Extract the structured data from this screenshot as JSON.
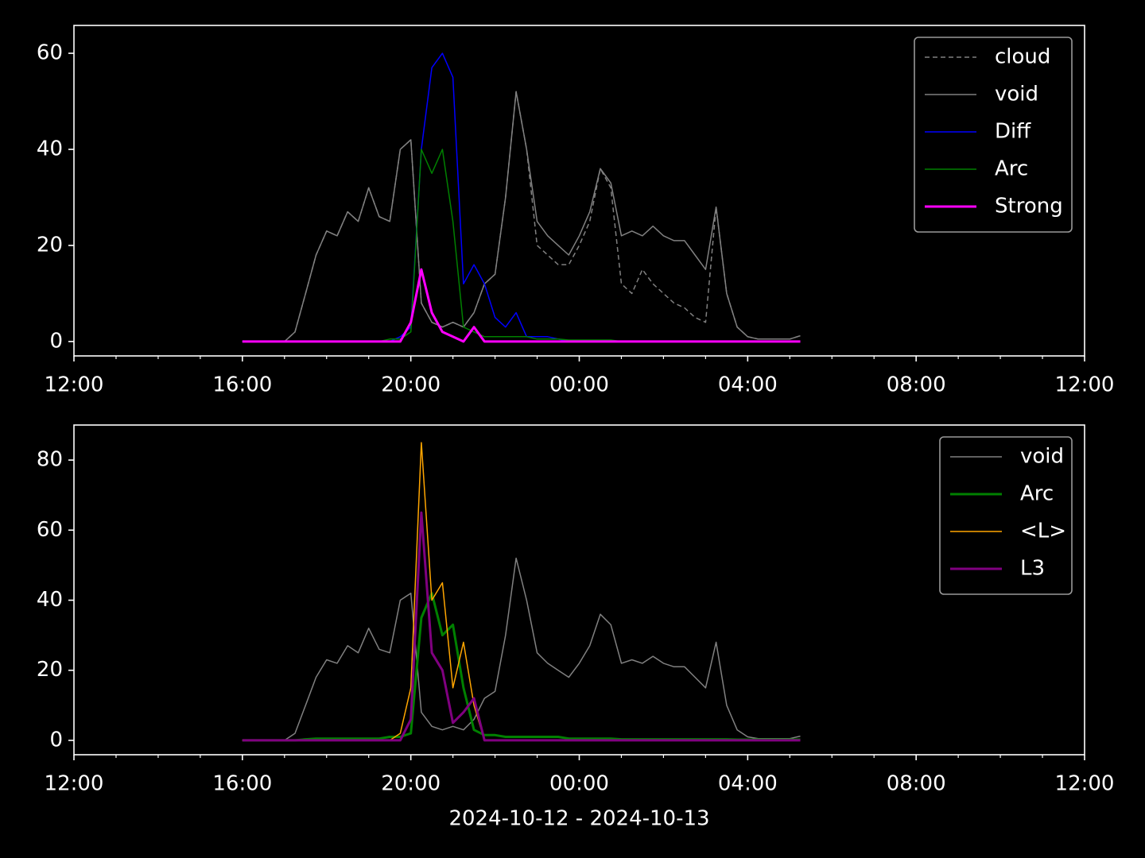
{
  "chart_data": [
    {
      "type": "line",
      "x": [
        16.0,
        16.25,
        16.5,
        16.75,
        17.0,
        17.25,
        17.5,
        17.75,
        18.0,
        18.25,
        18.5,
        18.75,
        19.0,
        19.25,
        19.5,
        19.75,
        20.0,
        20.25,
        20.5,
        20.75,
        21.0,
        21.25,
        21.5,
        21.75,
        22.0,
        22.25,
        22.5,
        22.75,
        23.0,
        23.25,
        23.5,
        23.75,
        24.0,
        24.25,
        24.5,
        24.75,
        25.0,
        25.25,
        25.5,
        25.75,
        26.0,
        26.25,
        26.5,
        26.75,
        27.0,
        27.25,
        27.5,
        27.75,
        28.0,
        28.25,
        28.5,
        28.75,
        29.0,
        29.25
      ],
      "xlim": [
        12,
        36
      ],
      "xticks": [
        {
          "value": 12,
          "label": "12:00"
        },
        {
          "value": 16,
          "label": "16:00"
        },
        {
          "value": 20,
          "label": "20:00"
        },
        {
          "value": 24,
          "label": "00:00"
        },
        {
          "value": 28,
          "label": "04:00"
        },
        {
          "value": 32,
          "label": "08:00"
        },
        {
          "value": 36,
          "label": "12:00"
        }
      ],
      "xminorticks": [
        13,
        14,
        15,
        17,
        18,
        19,
        21,
        22,
        23,
        25,
        26,
        27,
        29,
        30,
        31,
        33,
        34,
        35
      ],
      "ylim": [
        -3.0,
        65.8
      ],
      "yticks": [
        0,
        20,
        40,
        60
      ],
      "legend": "upper right",
      "series": [
        {
          "name": "cloud",
          "color": "#808080",
          "linewidth": 1.5,
          "linestyle": "dashed",
          "values": [
            0,
            0,
            0,
            0,
            0,
            2,
            10,
            18,
            23,
            22,
            27,
            25,
            32,
            26,
            25,
            40,
            42,
            8,
            4,
            3,
            4,
            3,
            6,
            12,
            14,
            30,
            52,
            40,
            20,
            18,
            16,
            16,
            20,
            25,
            36,
            32,
            12,
            10,
            15,
            12,
            10,
            8,
            7,
            5,
            4,
            28,
            10,
            3,
            1,
            0.5,
            0.5,
            0.5,
            0.5,
            1.2
          ]
        },
        {
          "name": "void",
          "color": "#808080",
          "linewidth": 1.5,
          "linestyle": "solid",
          "values": [
            0,
            0,
            0,
            0,
            0,
            2,
            10,
            18,
            23,
            22,
            27,
            25,
            32,
            26,
            25,
            40,
            42,
            8,
            4,
            3,
            4,
            3,
            6,
            12,
            14,
            30,
            52,
            40,
            25,
            22,
            20,
            18,
            22,
            27,
            36,
            33,
            22,
            23,
            22,
            24,
            22,
            21,
            21,
            18,
            15,
            28,
            10,
            3,
            1,
            0.5,
            0.5,
            0.5,
            0.5,
            1.2
          ]
        },
        {
          "name": "Diff",
          "color": "#0000ff",
          "linewidth": 1.5,
          "linestyle": "solid",
          "values": [
            0,
            0,
            0,
            0,
            0,
            0,
            0,
            0,
            0,
            0,
            0,
            0,
            0,
            0,
            0,
            1,
            3,
            40,
            57,
            60,
            55,
            12,
            16,
            12,
            5,
            3,
            6,
            1,
            1,
            1,
            0.5,
            0,
            0,
            0,
            0,
            0,
            0,
            0,
            0,
            0,
            0,
            0,
            0,
            0,
            0,
            0,
            0,
            0,
            0,
            0,
            0,
            0,
            0,
            0
          ]
        },
        {
          "name": "Arc",
          "color": "#008000",
          "linewidth": 1.5,
          "linestyle": "solid",
          "values": [
            0,
            0,
            0,
            0,
            0,
            0,
            0,
            0,
            0,
            0,
            0,
            0,
            0,
            0,
            0.5,
            0.5,
            2,
            40,
            35,
            40,
            25,
            3,
            2,
            1,
            1,
            1,
            1,
            1,
            0.5,
            0.5,
            0.5,
            0.3,
            0.3,
            0.3,
            0.3,
            0.3,
            0,
            0,
            0,
            0,
            0,
            0,
            0,
            0,
            0,
            0,
            0,
            0,
            0,
            0,
            0,
            0,
            0,
            0
          ]
        },
        {
          "name": "Strong",
          "color": "#ff00ff",
          "linewidth": 3,
          "linestyle": "solid",
          "values": [
            0,
            0,
            0,
            0,
            0,
            0,
            0,
            0,
            0,
            0,
            0,
            0,
            0,
            0,
            0,
            0,
            4,
            15,
            6,
            2,
            1,
            0,
            3,
            0,
            0,
            0,
            0,
            0,
            0,
            0,
            0,
            0,
            0,
            0,
            0,
            0,
            0,
            0,
            0,
            0,
            0,
            0,
            0,
            0,
            0,
            0,
            0,
            0,
            0,
            0,
            0,
            0,
            0,
            0
          ]
        }
      ]
    },
    {
      "type": "line",
      "x": [
        16.0,
        16.25,
        16.5,
        16.75,
        17.0,
        17.25,
        17.5,
        17.75,
        18.0,
        18.25,
        18.5,
        18.75,
        19.0,
        19.25,
        19.5,
        19.75,
        20.0,
        20.25,
        20.5,
        20.75,
        21.0,
        21.25,
        21.5,
        21.75,
        22.0,
        22.25,
        22.5,
        22.75,
        23.0,
        23.25,
        23.5,
        23.75,
        24.0,
        24.25,
        24.5,
        24.75,
        25.0,
        25.25,
        25.5,
        25.75,
        26.0,
        26.25,
        26.5,
        26.75,
        27.0,
        27.25,
        27.5,
        27.75,
        28.0,
        28.25,
        28.5,
        28.75,
        29.0,
        29.25
      ],
      "xlim": [
        12,
        36
      ],
      "xticks": [
        {
          "value": 12,
          "label": "12:00"
        },
        {
          "value": 16,
          "label": "16:00"
        },
        {
          "value": 20,
          "label": "20:00"
        },
        {
          "value": 24,
          "label": "00:00"
        },
        {
          "value": 28,
          "label": "04:00"
        },
        {
          "value": 32,
          "label": "08:00"
        },
        {
          "value": 36,
          "label": "12:00"
        }
      ],
      "xminorticks": [
        13,
        14,
        15,
        17,
        18,
        19,
        21,
        22,
        23,
        25,
        26,
        27,
        29,
        30,
        31,
        33,
        34,
        35
      ],
      "xlabel": "2024-10-12 - 2024-10-13",
      "ylim": [
        -4.1,
        90
      ],
      "yticks": [
        0,
        20,
        40,
        60,
        80
      ],
      "legend": "upper right",
      "series": [
        {
          "name": "void",
          "color": "#808080",
          "linewidth": 1.5,
          "linestyle": "solid",
          "values": [
            0,
            0,
            0,
            0,
            0,
            2,
            10,
            18,
            23,
            22,
            27,
            25,
            32,
            26,
            25,
            40,
            42,
            8,
            4,
            3,
            4,
            3,
            6,
            12,
            14,
            30,
            52,
            40,
            25,
            22,
            20,
            18,
            22,
            27,
            36,
            33,
            22,
            23,
            22,
            24,
            22,
            21,
            21,
            18,
            15,
            28,
            10,
            3,
            1,
            0.5,
            0.5,
            0.5,
            0.5,
            1.2
          ]
        },
        {
          "name": "Arc",
          "color": "#008000",
          "linewidth": 3,
          "linestyle": "solid",
          "values": [
            0,
            0,
            0,
            0,
            0,
            0,
            0.3,
            0.5,
            0.5,
            0.5,
            0.5,
            0.5,
            0.5,
            0.5,
            1,
            1,
            2,
            35,
            42,
            30,
            33,
            15,
            3,
            1.5,
            1.5,
            1,
            1,
            1,
            1,
            1,
            1,
            0.5,
            0.5,
            0.5,
            0.5,
            0.5,
            0.3,
            0.3,
            0.3,
            0.3,
            0.3,
            0.3,
            0.3,
            0.3,
            0.3,
            0.3,
            0.3,
            0.2,
            0.2,
            0.2,
            0.2,
            0.2,
            0.2,
            0.2
          ]
        },
        {
          "name": "<L>",
          "color": "#ffa500",
          "linewidth": 1.5,
          "linestyle": "solid",
          "values": [
            0,
            0,
            0,
            0,
            0,
            0,
            0,
            0,
            0,
            0,
            0,
            0,
            0,
            0,
            0,
            2,
            15,
            85,
            40,
            45,
            15,
            28,
            10,
            0,
            0,
            0,
            0,
            0,
            0,
            0,
            0,
            0,
            0,
            0,
            0,
            0,
            0,
            0,
            0,
            0,
            0,
            0,
            0,
            0,
            0,
            0,
            0,
            0,
            0,
            0,
            0,
            0,
            0,
            0
          ]
        },
        {
          "name": "L3",
          "color": "#800080",
          "linewidth": 3,
          "linestyle": "solid",
          "values": [
            0,
            0,
            0,
            0,
            0,
            0,
            0,
            0,
            0,
            0,
            0,
            0,
            0,
            0,
            0,
            0,
            6,
            65,
            25,
            20,
            5,
            8,
            12,
            0,
            0,
            0,
            0,
            0,
            0,
            0,
            0,
            0,
            0,
            0,
            0,
            0,
            0,
            0,
            0,
            0,
            0,
            0,
            0,
            0,
            0,
            0,
            0,
            0,
            0,
            0,
            0,
            0,
            0,
            0
          ]
        }
      ]
    }
  ]
}
